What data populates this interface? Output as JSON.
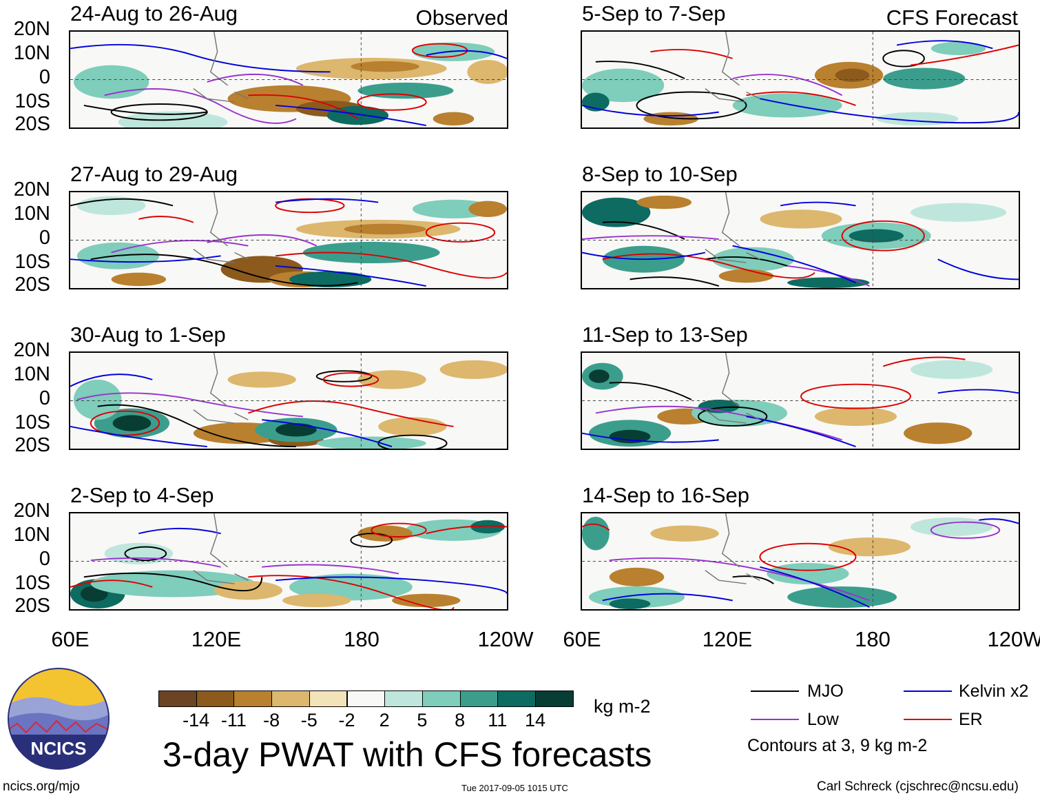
{
  "title": "3-day PWAT with CFS forecasts",
  "columns": {
    "left_label": "Observed",
    "right_label": "CFS Forecast"
  },
  "panels_left": [
    {
      "period": "24-Aug to 26-Aug"
    },
    {
      "period": "27-Aug to 29-Aug"
    },
    {
      "period": "30-Aug to 1-Sep"
    },
    {
      "period": "2-Sep to 4-Sep"
    }
  ],
  "panels_right": [
    {
      "period": "5-Sep to 7-Sep"
    },
    {
      "period": "8-Sep to 10-Sep"
    },
    {
      "period": "11-Sep to 13-Sep"
    },
    {
      "period": "14-Sep to 16-Sep"
    }
  ],
  "lat_labels": [
    "20N",
    "10N",
    "0",
    "10S",
    "20S"
  ],
  "lon_labels": [
    "60E",
    "120E",
    "180",
    "120W"
  ],
  "colorbar": {
    "unit": "kg m-2",
    "labels": [
      "-14",
      "-11",
      "-8",
      "-5",
      "-2",
      "2",
      "5",
      "8",
      "11",
      "14"
    ],
    "colors": [
      "#6b4424",
      "#8b5a1c",
      "#b9802f",
      "#dcb76d",
      "#f3e3b8",
      "#f8f8f6",
      "#bfe6dc",
      "#7fcdbb",
      "#3b9e8d",
      "#0d6b61",
      "#083d34"
    ]
  },
  "legend": {
    "items": [
      {
        "label": "MJO",
        "color": "#000000"
      },
      {
        "label": "Kelvin x2",
        "color": "#0000dd"
      },
      {
        "label": "Low",
        "color": "#9933cc"
      },
      {
        "label": "ER",
        "color": "#dd0000"
      }
    ],
    "note": "Contours at 3, 9 kg m-2"
  },
  "logo": {
    "text": "NCICS"
  },
  "footer": {
    "url": "ncics.org/mjo",
    "timestamp": "Tue 2017-09-05 1015 UTC",
    "credit": "Carl Schreck (cjschrec@ncsu.edu)"
  }
}
